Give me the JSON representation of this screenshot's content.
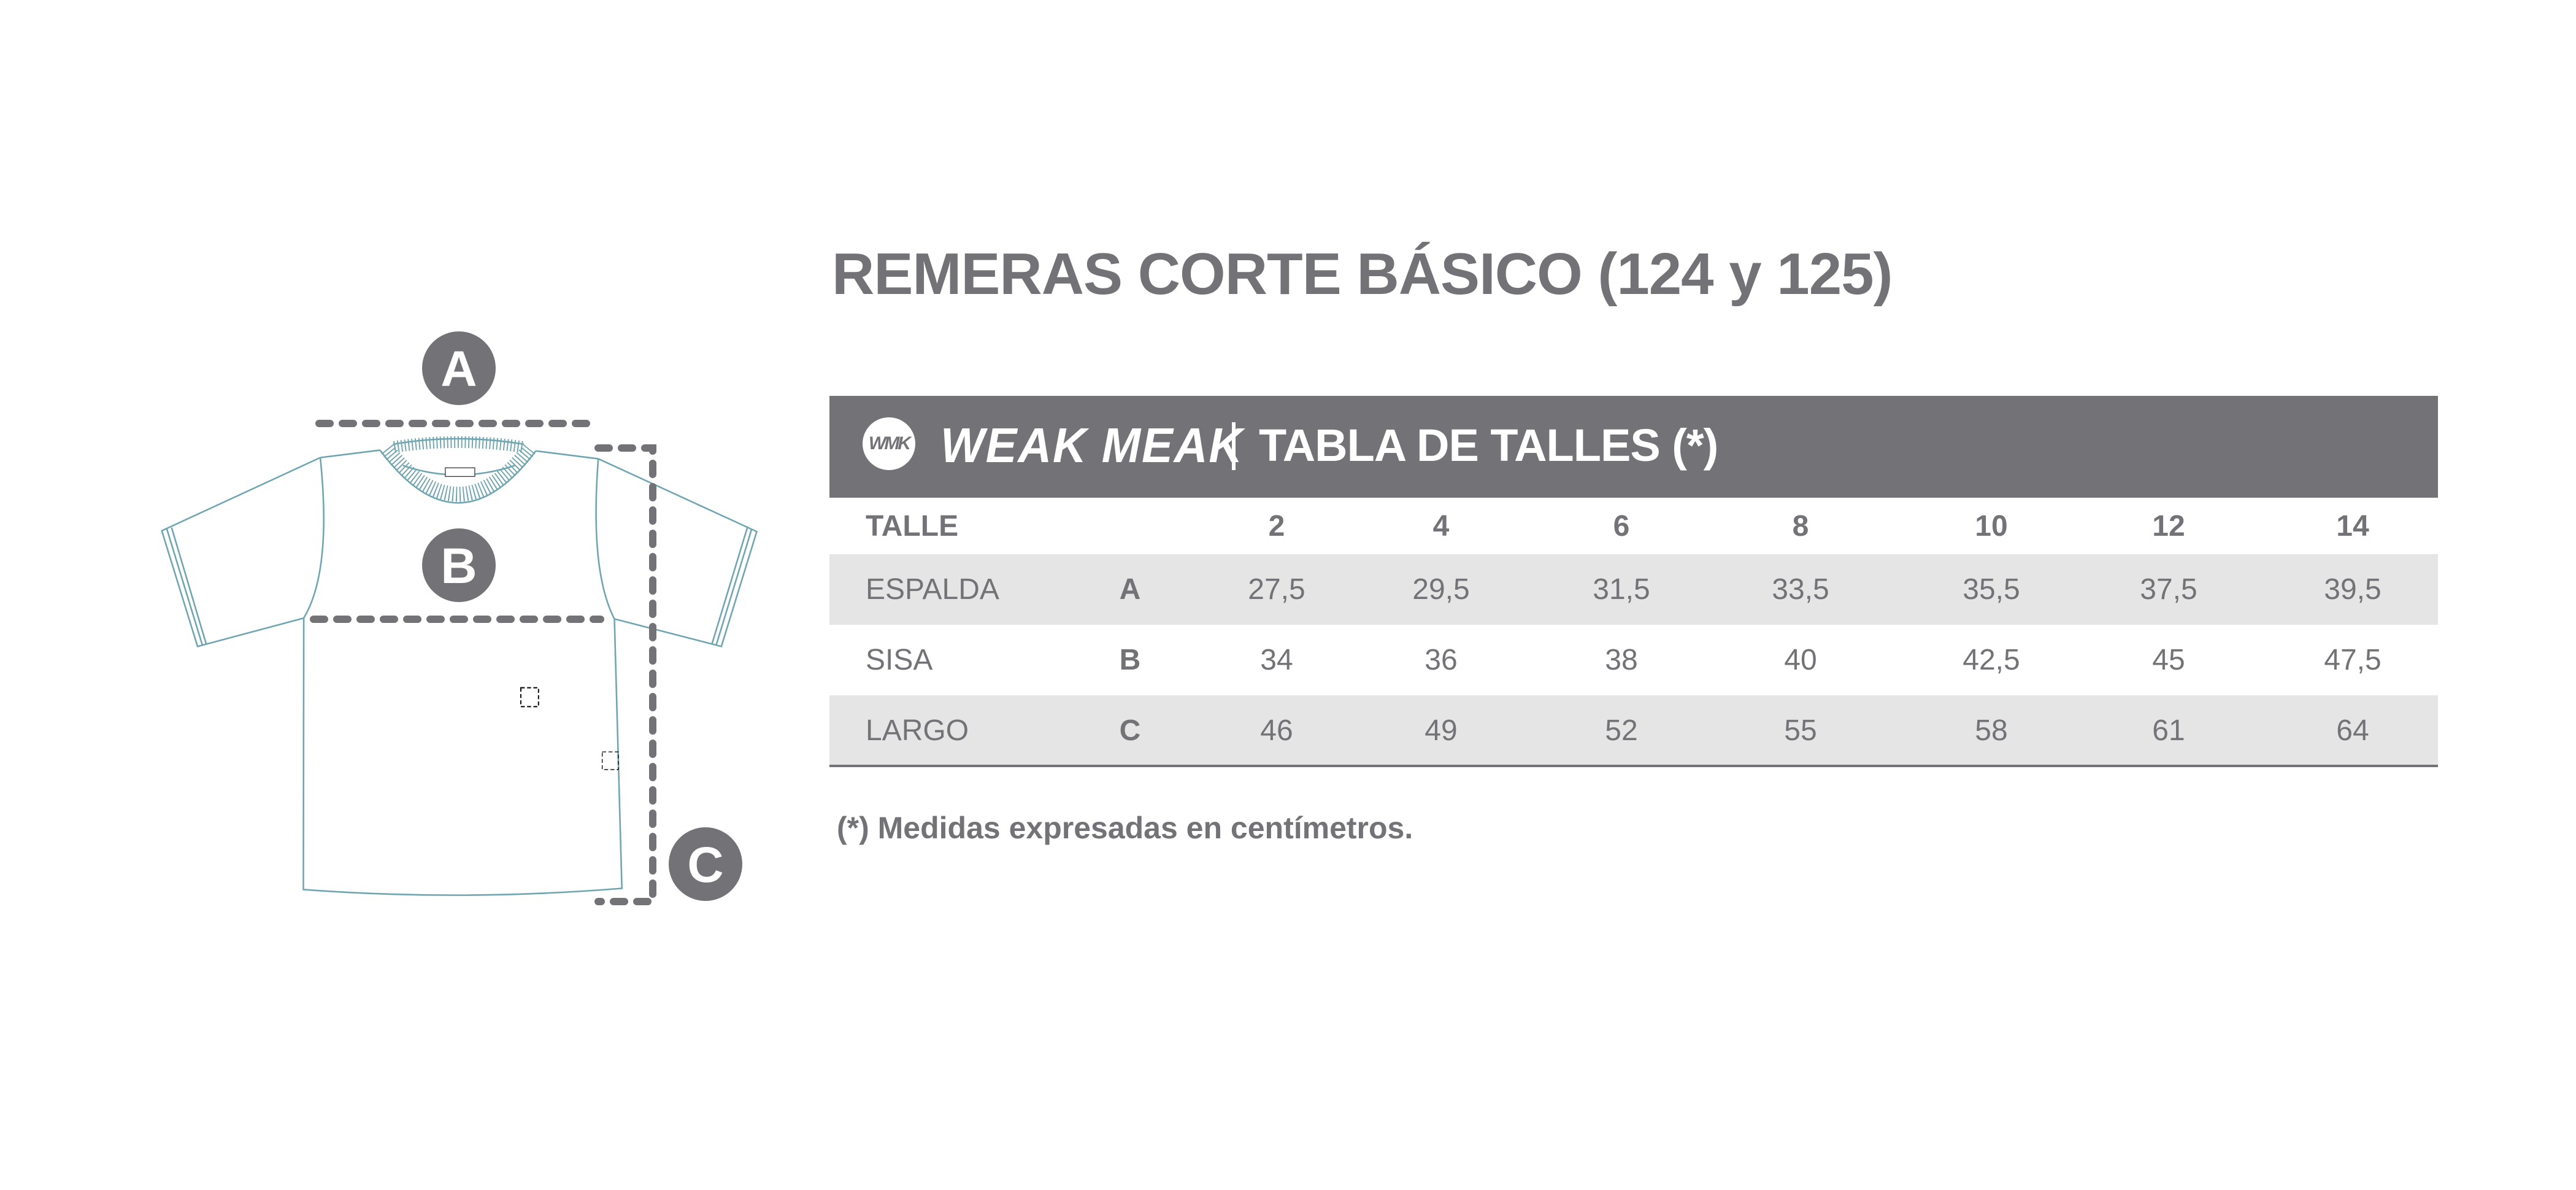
{
  "title": "REMERAS CORTE BÁSICO (124 y 125)",
  "header": {
    "logo_mark": "WMK",
    "brand": "WEAK MEAK",
    "table_title": "TABLA DE TALLES (*)",
    "color": "#737277"
  },
  "table": {
    "header_label": "TALLE",
    "sizes": [
      "2",
      "4",
      "6",
      "8",
      "10",
      "12",
      "14"
    ],
    "rows": [
      {
        "label": "ESPALDA",
        "key": "A",
        "values": [
          "27,5",
          "29,5",
          "31,5",
          "33,5",
          "35,5",
          "37,5",
          "39,5"
        ]
      },
      {
        "label": "SISA",
        "key": "B",
        "values": [
          "34",
          "36",
          "38",
          "40",
          "42,5",
          "45",
          "47,5"
        ]
      },
      {
        "label": "LARGO",
        "key": "C",
        "values": [
          "46",
          "49",
          "52",
          "55",
          "58",
          "61",
          "64"
        ]
      }
    ],
    "shade_color": "#e6e5e6"
  },
  "footnote": "(*) Medidas expresadas en centímetros.",
  "diagram": {
    "markers": [
      "A",
      "B",
      "C"
    ],
    "garment_color": "#6fa5b1"
  }
}
